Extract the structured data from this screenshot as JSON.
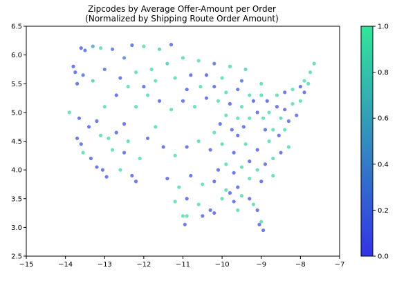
{
  "chart_data": {
    "type": "scatter",
    "title": "Zipcodes by Average Offer-Amount per Order",
    "subtitle": "(Normalized by Shipping Route Order Amount)",
    "xlim": [
      -15,
      -7
    ],
    "ylim": [
      2.5,
      6.5
    ],
    "xticks": [
      "−15",
      "−14",
      "−13",
      "−12",
      "−11",
      "−10",
      "−9",
      "−8",
      "−7"
    ],
    "yticks": [
      "2.5",
      "3.0",
      "3.5",
      "4.0",
      "4.5",
      "5.0",
      "5.5",
      "6.0",
      "6.5"
    ],
    "grid": false,
    "colorbar": {
      "range": [
        0,
        1
      ],
      "ticks": [
        "0.0",
        "0.2",
        "0.4",
        "0.6",
        "0.8",
        "1.0"
      ],
      "low_color": "#3333e6",
      "high_color": "#33e699"
    },
    "points": [
      [
        -13.6,
        6.12,
        0.1
      ],
      [
        -13.5,
        6.08,
        0.15
      ],
      [
        -13.3,
        6.15,
        0.5
      ],
      [
        -13.1,
        6.12,
        0.9
      ],
      [
        -12.8,
        6.1,
        0.2
      ],
      [
        -12.3,
        6.17,
        0.1
      ],
      [
        -12.0,
        6.15,
        0.9
      ],
      [
        -11.3,
        6.18,
        0.1
      ],
      [
        -11.6,
        6.1,
        0.8
      ],
      [
        -12.5,
        5.95,
        0.3
      ],
      [
        -13.75,
        5.7,
        0.1
      ],
      [
        -13.8,
        5.8,
        0.1
      ],
      [
        -13.7,
        5.5,
        0.1
      ],
      [
        -13.55,
        5.65,
        0.2
      ],
      [
        -13.3,
        5.55,
        0.8
      ],
      [
        -13.0,
        5.75,
        0.2
      ],
      [
        -12.6,
        5.6,
        0.1
      ],
      [
        -12.2,
        5.7,
        0.9
      ],
      [
        -11.8,
        5.75,
        0.9
      ],
      [
        -11.4,
        5.85,
        0.8
      ],
      [
        -11.0,
        5.95,
        0.9
      ],
      [
        -10.6,
        5.9,
        0.9
      ],
      [
        -10.2,
        5.85,
        0.2
      ],
      [
        -9.8,
        5.8,
        0.9
      ],
      [
        -9.4,
        5.75,
        0.8
      ],
      [
        -10.8,
        5.65,
        0.1
      ],
      [
        -10.4,
        5.65,
        0.1
      ],
      [
        -10.0,
        5.6,
        0.9
      ],
      [
        -9.5,
        5.55,
        0.2
      ],
      [
        -9.0,
        5.5,
        0.9
      ],
      [
        -13.9,
        5.0,
        0.9
      ],
      [
        -13.65,
        4.9,
        0.1
      ],
      [
        -13.4,
        4.75,
        0.1
      ],
      [
        -13.7,
        4.55,
        0.1
      ],
      [
        -13.6,
        4.45,
        0.1
      ],
      [
        -13.55,
        4.3,
        0.9
      ],
      [
        -13.35,
        4.2,
        0.1
      ],
      [
        -13.2,
        4.05,
        0.1
      ],
      [
        -13.05,
        4.0,
        0.1
      ],
      [
        -12.95,
        3.88,
        0.1
      ],
      [
        -12.8,
        4.35,
        0.9
      ],
      [
        -12.5,
        4.3,
        0.1
      ],
      [
        -12.6,
        4.0,
        0.9
      ],
      [
        -12.3,
        3.9,
        0.1
      ],
      [
        -12.2,
        3.8,
        0.1
      ],
      [
        -12.1,
        4.2,
        0.9
      ],
      [
        -11.9,
        4.55,
        0.1
      ],
      [
        -11.7,
        4.75,
        0.9
      ],
      [
        -12.5,
        4.8,
        0.1
      ],
      [
        -12.2,
        5.1,
        0.9
      ],
      [
        -11.9,
        5.3,
        0.9
      ],
      [
        -11.6,
        5.2,
        0.1
      ],
      [
        -11.3,
        5.05,
        0.9
      ],
      [
        -11.0,
        5.2,
        0.1
      ],
      [
        -10.7,
        5.1,
        0.9
      ],
      [
        -10.4,
        5.25,
        0.1
      ],
      [
        -10.1,
        5.2,
        0.9
      ],
      [
        -9.8,
        5.15,
        0.1
      ],
      [
        -9.5,
        5.1,
        0.9
      ],
      [
        -9.2,
        5.2,
        0.1
      ],
      [
        -11.5,
        4.4,
        0.1
      ],
      [
        -11.2,
        4.25,
        0.9
      ],
      [
        -10.9,
        4.4,
        0.1
      ],
      [
        -10.6,
        4.5,
        0.9
      ],
      [
        -10.3,
        4.35,
        0.1
      ],
      [
        -10.0,
        4.45,
        0.9
      ],
      [
        -9.7,
        4.3,
        0.1
      ],
      [
        -9.4,
        4.45,
        0.9
      ],
      [
        -9.1,
        4.35,
        0.1
      ],
      [
        -8.8,
        4.5,
        0.9
      ],
      [
        -11.4,
        3.85,
        0.1
      ],
      [
        -11.1,
        3.7,
        0.9
      ],
      [
        -10.8,
        3.9,
        0.1
      ],
      [
        -10.5,
        3.75,
        0.9
      ],
      [
        -10.2,
        3.8,
        0.1
      ],
      [
        -9.9,
        3.65,
        0.9
      ],
      [
        -9.6,
        3.7,
        0.1
      ],
      [
        -9.3,
        3.85,
        0.9
      ],
      [
        -9.0,
        3.8,
        0.1
      ],
      [
        -8.7,
        3.9,
        0.9
      ],
      [
        -11.2,
        3.45,
        0.9
      ],
      [
        -10.9,
        3.5,
        0.1
      ],
      [
        -10.6,
        3.4,
        0.9
      ],
      [
        -10.3,
        3.3,
        0.1
      ],
      [
        -10.0,
        3.5,
        0.9
      ],
      [
        -9.7,
        3.45,
        0.1
      ],
      [
        -9.5,
        3.55,
        0.9
      ],
      [
        -9.3,
        3.5,
        0.1
      ],
      [
        -9.1,
        3.3,
        0.1
      ],
      [
        -9.0,
        3.1,
        0.9
      ],
      [
        -8.95,
        2.95,
        0.1
      ],
      [
        -9.05,
        3.05,
        0.1
      ],
      [
        -9.2,
        3.4,
        0.9
      ],
      [
        -10.9,
        3.2,
        0.9
      ],
      [
        -10.95,
        3.05,
        0.1
      ],
      [
        -11.0,
        3.2,
        0.9
      ],
      [
        -10.2,
        3.25,
        0.1
      ],
      [
        -10.5,
        3.2,
        0.1
      ],
      [
        -9.6,
        3.3,
        0.9
      ],
      [
        -9.8,
        3.6,
        0.1
      ],
      [
        -8.8,
        5.0,
        0.9
      ],
      [
        -8.6,
        5.1,
        0.1
      ],
      [
        -8.5,
        4.9,
        0.9
      ],
      [
        -8.4,
        5.05,
        0.1
      ],
      [
        -8.3,
        4.85,
        0.1
      ],
      [
        -8.2,
        5.15,
        0.9
      ],
      [
        -8.1,
        4.95,
        0.1
      ],
      [
        -8.0,
        5.2,
        0.9
      ],
      [
        -7.9,
        5.35,
        0.1
      ],
      [
        -7.8,
        5.5,
        0.9
      ],
      [
        -7.65,
        5.85,
        0.9
      ],
      [
        -7.75,
        5.7,
        0.9
      ],
      [
        -7.9,
        5.55,
        0.9
      ],
      [
        -8.0,
        5.45,
        0.1
      ],
      [
        -8.2,
        5.4,
        0.9
      ],
      [
        -8.4,
        5.35,
        0.1
      ],
      [
        -8.6,
        5.3,
        0.9
      ],
      [
        -8.7,
        4.7,
        0.9
      ],
      [
        -8.55,
        4.6,
        0.1
      ],
      [
        -8.4,
        4.7,
        0.9
      ],
      [
        -8.9,
        4.7,
        0.1
      ],
      [
        -8.95,
        4.9,
        0.9
      ],
      [
        -9.1,
        5.0,
        0.1
      ],
      [
        -9.3,
        4.9,
        0.9
      ],
      [
        -9.45,
        4.75,
        0.1
      ],
      [
        -9.6,
        4.9,
        0.9
      ],
      [
        -9.75,
        4.7,
        0.1
      ],
      [
        -9.9,
        4.95,
        0.9
      ],
      [
        -10.05,
        4.8,
        0.1
      ],
      [
        -10.2,
        4.65,
        0.9
      ],
      [
        -8.3,
        4.4,
        0.9
      ],
      [
        -8.5,
        4.3,
        0.1
      ],
      [
        -8.7,
        4.2,
        0.9
      ],
      [
        -8.9,
        4.1,
        0.1
      ],
      [
        -9.1,
        4.0,
        0.9
      ],
      [
        -9.3,
        4.15,
        0.1
      ],
      [
        -9.5,
        4.05,
        0.9
      ],
      [
        -9.7,
        3.95,
        0.1
      ],
      [
        -9.9,
        4.1,
        0.9
      ],
      [
        -10.1,
        4.0,
        0.1
      ],
      [
        -12.9,
        4.55,
        0.9
      ],
      [
        -12.7,
        4.65,
        0.1
      ],
      [
        -12.4,
        4.5,
        0.9
      ],
      [
        -13.1,
        4.6,
        0.9
      ],
      [
        -13.2,
        4.85,
        0.1
      ],
      [
        -13.0,
        5.1,
        0.9
      ],
      [
        -12.7,
        5.3,
        0.1
      ],
      [
        -12.4,
        5.45,
        0.9
      ],
      [
        -12.0,
        5.45,
        0.1
      ],
      [
        -11.7,
        5.55,
        0.9
      ],
      [
        -11.2,
        5.6,
        0.9
      ],
      [
        -10.9,
        5.4,
        0.1
      ],
      [
        -10.55,
        5.45,
        0.9
      ],
      [
        -10.2,
        5.45,
        0.1
      ],
      [
        -9.9,
        5.35,
        0.9
      ],
      [
        -9.6,
        5.4,
        0.1
      ],
      [
        -9.3,
        5.3,
        0.9
      ],
      [
        -9.0,
        5.3,
        0.9
      ],
      [
        -8.85,
        5.2,
        0.1
      ],
      [
        -9.6,
        4.6,
        0.1
      ]
    ]
  }
}
